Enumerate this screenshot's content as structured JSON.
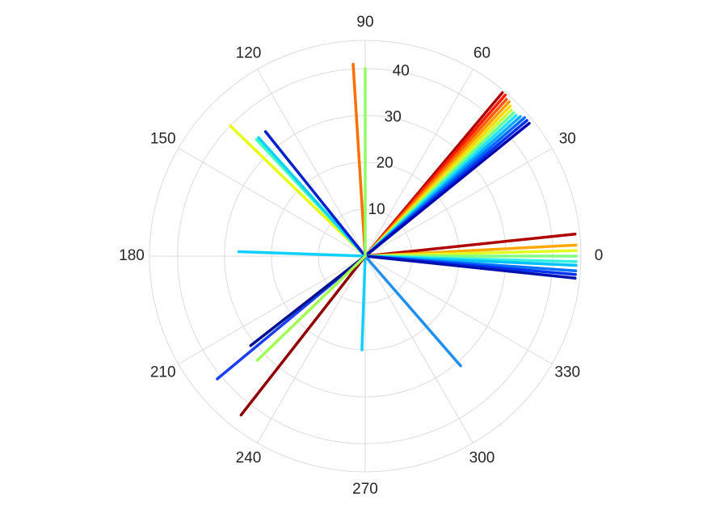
{
  "chart_data": {
    "type": "polar",
    "rlim": [
      0,
      46
    ],
    "rticks": [
      10,
      20,
      30,
      40
    ],
    "thetaticks": [
      0,
      30,
      60,
      90,
      120,
      150,
      180,
      210,
      240,
      270,
      300,
      330
    ],
    "grid": true,
    "rays": [
      {
        "theta": 50,
        "r": 45.5,
        "color": "#b00000"
      },
      {
        "theta": 49,
        "r": 45.5,
        "color": "#ff1a00"
      },
      {
        "theta": 48,
        "r": 45,
        "color": "#ff5a00"
      },
      {
        "theta": 47,
        "r": 45,
        "color": "#ff9a00"
      },
      {
        "theta": 46,
        "r": 44.5,
        "color": "#ffd800"
      },
      {
        "theta": 45,
        "r": 44,
        "color": "#c8ff38"
      },
      {
        "theta": 44,
        "r": 44,
        "color": "#60ffa0"
      },
      {
        "theta": 43,
        "r": 44,
        "color": "#20e0ff"
      },
      {
        "theta": 42,
        "r": 44.5,
        "color": "#00a8ff"
      },
      {
        "theta": 41,
        "r": 45,
        "color": "#0068ff"
      },
      {
        "theta": 40,
        "r": 45,
        "color": "#0030e8"
      },
      {
        "theta": 39,
        "r": 45,
        "color": "#0000b0"
      },
      {
        "theta": 6,
        "r": 45,
        "color": "#b00000"
      },
      {
        "theta": 3,
        "r": 45,
        "color": "#ffa800"
      },
      {
        "theta": 1.5,
        "r": 45,
        "color": "#e0ff20"
      },
      {
        "theta": 0,
        "r": 45,
        "color": "#80ff80"
      },
      {
        "theta": -1.5,
        "r": 45,
        "color": "#30f0e0"
      },
      {
        "theta": -2.5,
        "r": 45,
        "color": "#00c0ff"
      },
      {
        "theta": -4,
        "r": 45,
        "color": "#0070ff"
      },
      {
        "theta": -5,
        "r": 45,
        "color": "#0030f0"
      },
      {
        "theta": -6,
        "r": 45,
        "color": "#0010b0"
      },
      {
        "theta": 136,
        "r": 40,
        "color": "#e8ff10"
      },
      {
        "theta": 133,
        "r": 34,
        "color": "#40ffc0"
      },
      {
        "theta": 132,
        "r": 34,
        "color": "#10d0ff"
      },
      {
        "theta": 128.7,
        "r": 34,
        "color": "#0020d0"
      },
      {
        "theta": 93.6,
        "r": 41,
        "color": "#ff7000"
      },
      {
        "theta": 90,
        "r": 40,
        "color": "#90ff60"
      },
      {
        "theta": 178,
        "r": 27,
        "color": "#10d0ff"
      },
      {
        "theta": 268,
        "r": 20,
        "color": "#10d0ff"
      },
      {
        "theta": 311,
        "r": 31,
        "color": "#2090f0"
      },
      {
        "theta": 232,
        "r": 43,
        "color": "#900000"
      },
      {
        "theta": 219.7,
        "r": 41,
        "color": "#1840f0"
      },
      {
        "theta": 218,
        "r": 31,
        "color": "#001090"
      },
      {
        "theta": 224,
        "r": 32,
        "color": "#a0ff50"
      }
    ]
  }
}
